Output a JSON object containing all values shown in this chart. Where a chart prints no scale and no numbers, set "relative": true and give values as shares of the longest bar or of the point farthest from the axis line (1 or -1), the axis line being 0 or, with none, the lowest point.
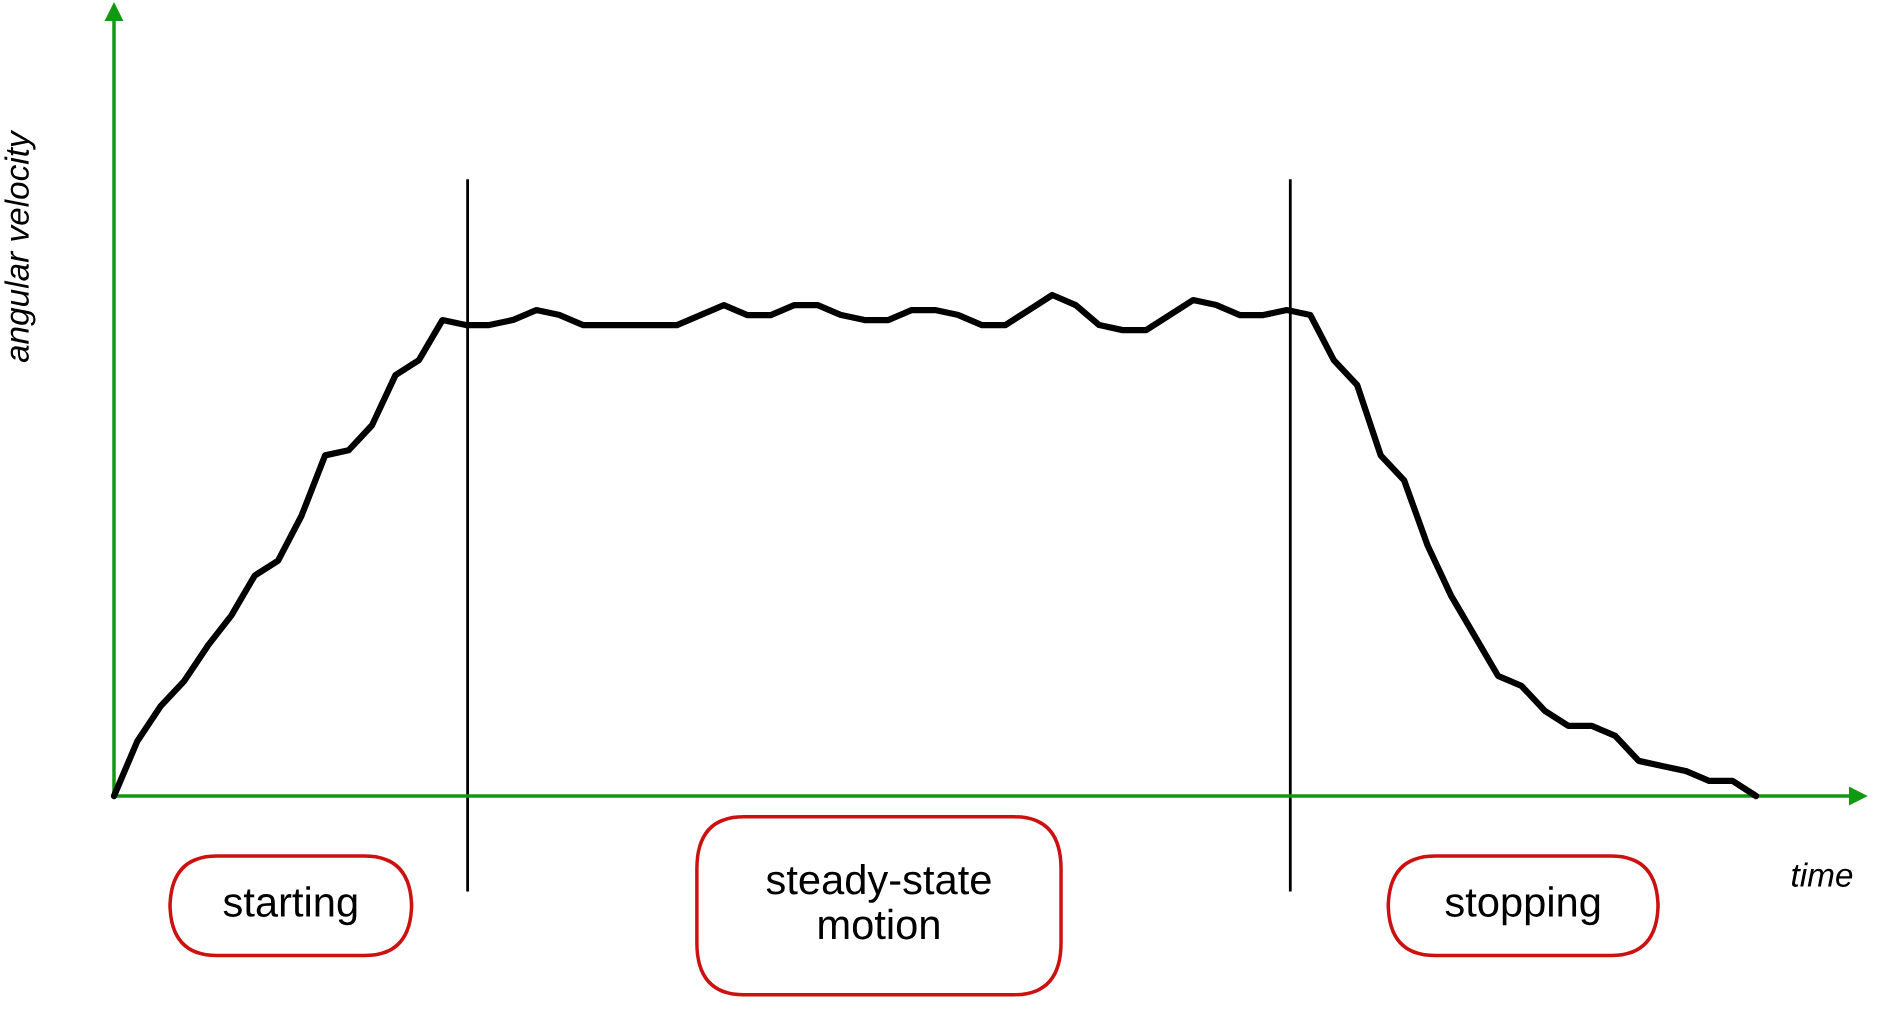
{
  "chart_data": {
    "type": "line",
    "relative": true,
    "xlabel": "time",
    "ylabel": "angular velocity",
    "categories": [
      null,
      null,
      null,
      null,
      null,
      null,
      null,
      null,
      null,
      null,
      null,
      null,
      null,
      null,
      null,
      null,
      null,
      null,
      null,
      null,
      null,
      null,
      null,
      null,
      null,
      null,
      null,
      null,
      null,
      null,
      null,
      null,
      null,
      null,
      null,
      null,
      null,
      null,
      null,
      null,
      null,
      null,
      null,
      null,
      null,
      null,
      null,
      null,
      null,
      null,
      null,
      null,
      null,
      null,
      null,
      null,
      null,
      null,
      null,
      null,
      null,
      null,
      null,
      null,
      null,
      null,
      null,
      null,
      null,
      null,
      null
    ],
    "series": [
      {
        "color": "#000000",
        "values": [
          0,
          0.11,
          0.18,
          0.23,
          0.3,
          0.36,
          0.44,
          0.47,
          0.56,
          0.68,
          0.69,
          0.74,
          0.84,
          0.87,
          0.95,
          0.94,
          0.94,
          0.95,
          0.97,
          0.96,
          0.94,
          0.94,
          0.94,
          0.94,
          0.94,
          0.96,
          0.98,
          0.96,
          0.96,
          0.98,
          0.98,
          0.96,
          0.95,
          0.95,
          0.97,
          0.97,
          0.96,
          0.94,
          0.94,
          0.97,
          1.0,
          0.98,
          0.94,
          0.93,
          0.93,
          0.96,
          0.99,
          0.98,
          0.96,
          0.96,
          0.97,
          0.96,
          0.87,
          0.82,
          0.68,
          0.63,
          0.5,
          0.4,
          0.32,
          0.24,
          0.22,
          0.17,
          0.14,
          0.14,
          0.12,
          0.07,
          0.06,
          0.05,
          0.03,
          0.03,
          0.0
        ]
      }
    ],
    "annotations": [
      "starting",
      "steady-state\nmotion",
      "stopping"
    ],
    "legend": false,
    "marker": "none",
    "line_style": "solid"
  }
}
